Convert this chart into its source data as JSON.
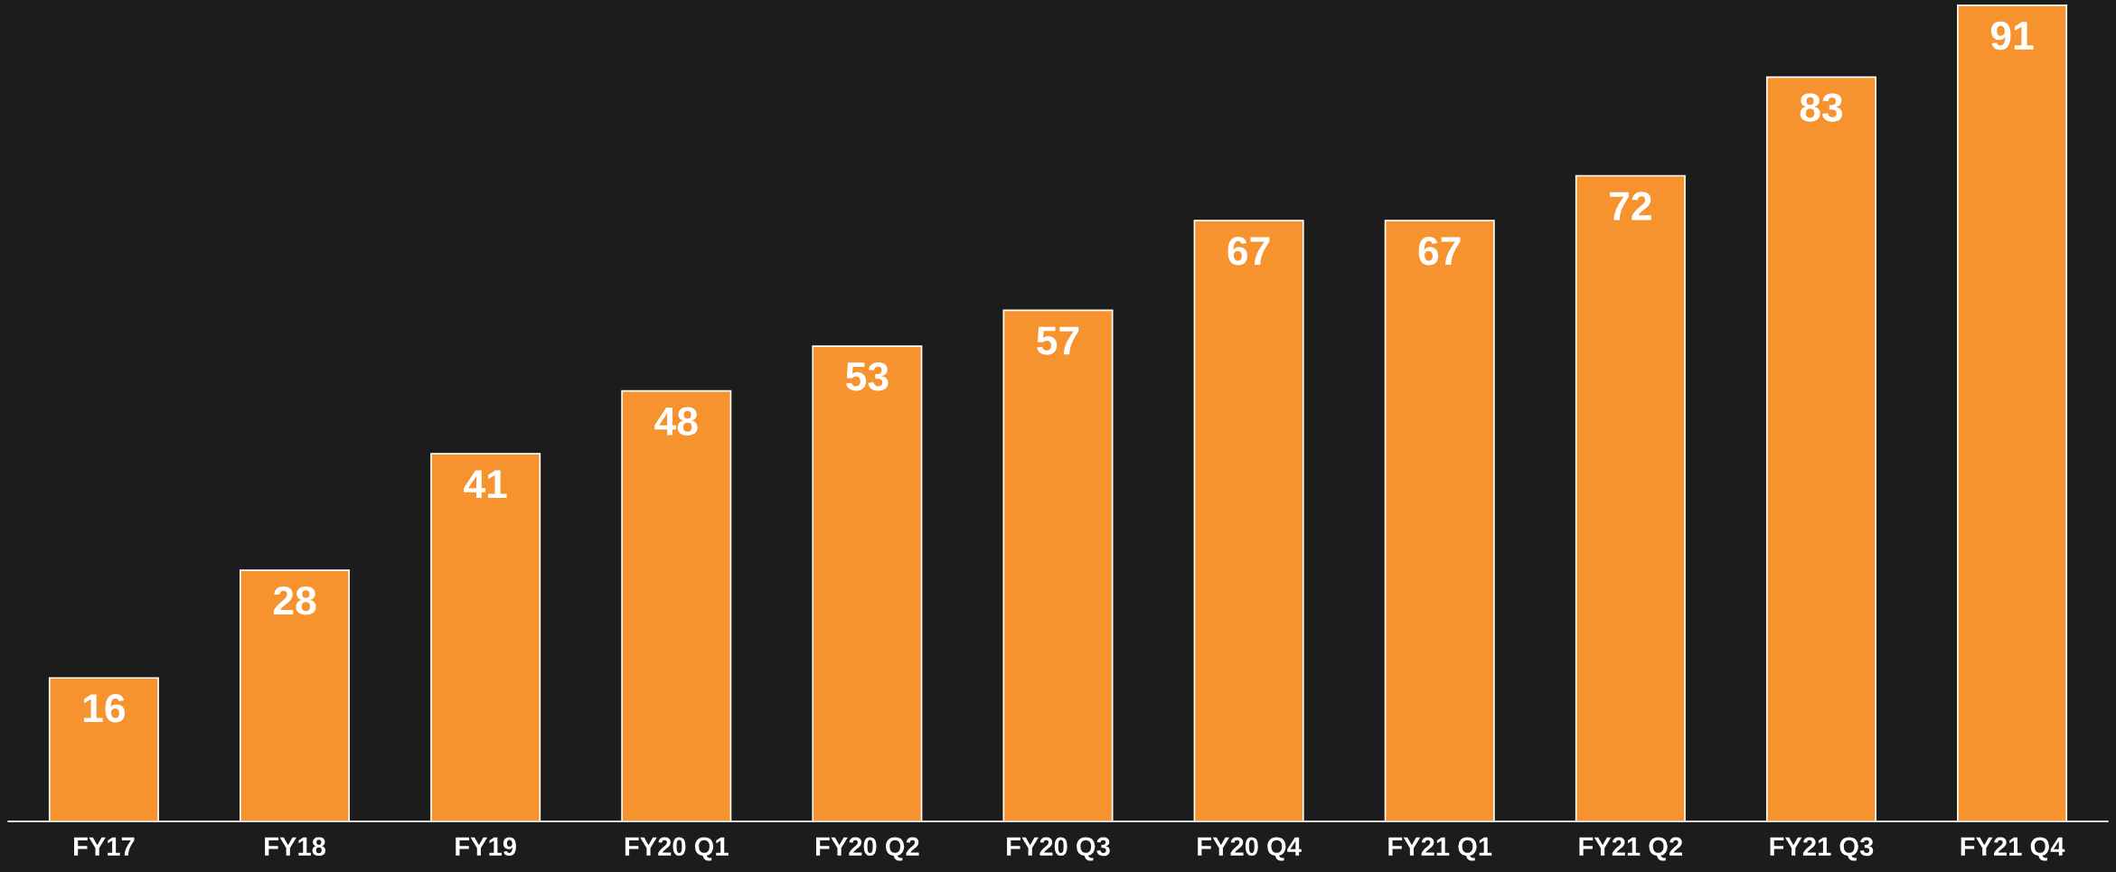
{
  "chart_data": {
    "type": "bar",
    "categories": [
      "FY17",
      "FY18",
      "FY19",
      "FY20 Q1",
      "FY20 Q2",
      "FY20 Q3",
      "FY20 Q4",
      "FY21 Q1",
      "FY21 Q2",
      "FY21 Q3",
      "FY21 Q4"
    ],
    "values": [
      16,
      28,
      41,
      48,
      53,
      57,
      67,
      67,
      72,
      83,
      91
    ],
    "color": "#f7932f",
    "ylim": [
      0,
      91.6
    ],
    "data_labels": true,
    "tick_labels": "x",
    "grid": false,
    "legend": false
  }
}
